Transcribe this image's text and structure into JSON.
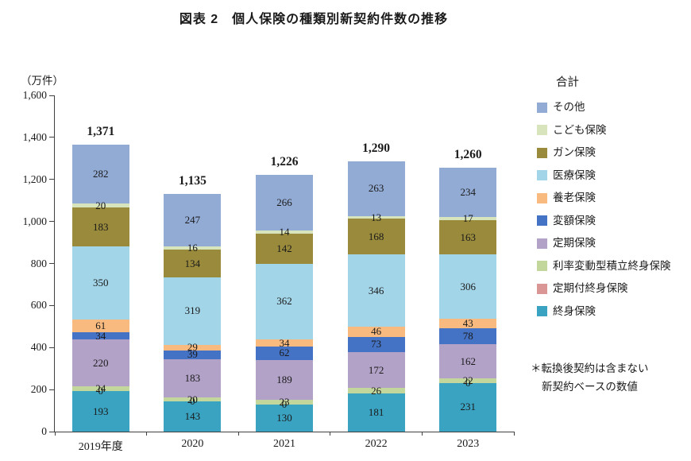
{
  "title": "図表 2　個人保険の種類別新契約件数の推移",
  "axis": {
    "unit_label": "（万件）"
  },
  "legend": {
    "header": "合計",
    "items": [
      {
        "label": "その他",
        "color": "#92ABD5"
      },
      {
        "label": "こども保険",
        "color": "#D8E4BC"
      },
      {
        "label": "ガン保険",
        "color": "#998A3C"
      },
      {
        "label": "医療保険",
        "color": "#A3D5E8"
      },
      {
        "label": "養老保険",
        "color": "#F9BA7F"
      },
      {
        "label": "変額保険",
        "color": "#4472C4"
      },
      {
        "label": "定期保険",
        "color": "#B2A2C7"
      },
      {
        "label": "利率変動型積立終身保険",
        "color": "#C3D69B"
      },
      {
        "label": "定期付終身保険",
        "color": "#D99694"
      },
      {
        "label": "終身保険",
        "color": "#3AA3C2"
      }
    ]
  },
  "note": {
    "line1": "＊転換後契約は含まない",
    "line2": "新契約ベースの数値"
  },
  "chart_data": {
    "type": "bar",
    "subtype": "stacked",
    "categories": [
      "2019年度",
      "2020",
      "2021",
      "2022",
      "2023"
    ],
    "totals": [
      "1,371",
      "1,135",
      "1,226",
      "1,290",
      "1,260"
    ],
    "ylim": [
      0,
      1600
    ],
    "yticks": [
      "1,600",
      "1,400",
      "1,200",
      "1,000",
      "800",
      "600",
      "400",
      "200",
      "0"
    ],
    "ylabel": "（万件）",
    "grid": false,
    "legend_position": "right",
    "series": [
      {
        "name": "終身保険",
        "color": "#3AA3C2",
        "values": [
          193,
          143,
          130,
          181,
          231
        ],
        "labels": [
          "193",
          "143",
          "130",
          "181",
          "231"
        ]
      },
      {
        "name": "定期付終身保険",
        "color": "#D99694",
        "values": [
          0,
          0,
          0,
          0,
          0
        ],
        "labels": [
          "0",
          "0",
          "0",
          "",
          "0"
        ]
      },
      {
        "name": "利率変動型積立終身保険",
        "color": "#C3D69B",
        "values": [
          24,
          20,
          23,
          26,
          22
        ],
        "labels": [
          "24",
          "20",
          "23",
          "26",
          "22"
        ]
      },
      {
        "name": "定期保険",
        "color": "#B2A2C7",
        "values": [
          220,
          183,
          189,
          172,
          162
        ],
        "labels": [
          "220",
          "183",
          "189",
          "172",
          "162"
        ]
      },
      {
        "name": "変額保険",
        "color": "#4472C4",
        "values": [
          34,
          39,
          62,
          73,
          78
        ],
        "labels": [
          "34",
          "39",
          "62",
          "73",
          "78"
        ]
      },
      {
        "name": "養老保険",
        "color": "#F9BA7F",
        "values": [
          61,
          29,
          34,
          46,
          43
        ],
        "labels": [
          "61",
          "29",
          "34",
          "46",
          "43"
        ]
      },
      {
        "name": "医療保険",
        "color": "#A3D5E8",
        "values": [
          350,
          319,
          362,
          346,
          306
        ],
        "labels": [
          "350",
          "319",
          "362",
          "346",
          "306"
        ]
      },
      {
        "name": "ガン保険",
        "color": "#998A3C",
        "values": [
          183,
          134,
          142,
          168,
          163
        ],
        "labels": [
          "183",
          "134",
          "142",
          "168",
          "163"
        ]
      },
      {
        "name": "こども保険",
        "color": "#D8E4BC",
        "values": [
          20,
          16,
          14,
          13,
          17
        ],
        "labels": [
          "20",
          "16",
          "14",
          "13",
          "17"
        ]
      },
      {
        "name": "その他",
        "color": "#92ABD5",
        "values": [
          282,
          247,
          266,
          263,
          234
        ],
        "labels": [
          "282",
          "247",
          "266",
          "263",
          "234"
        ]
      }
    ]
  }
}
